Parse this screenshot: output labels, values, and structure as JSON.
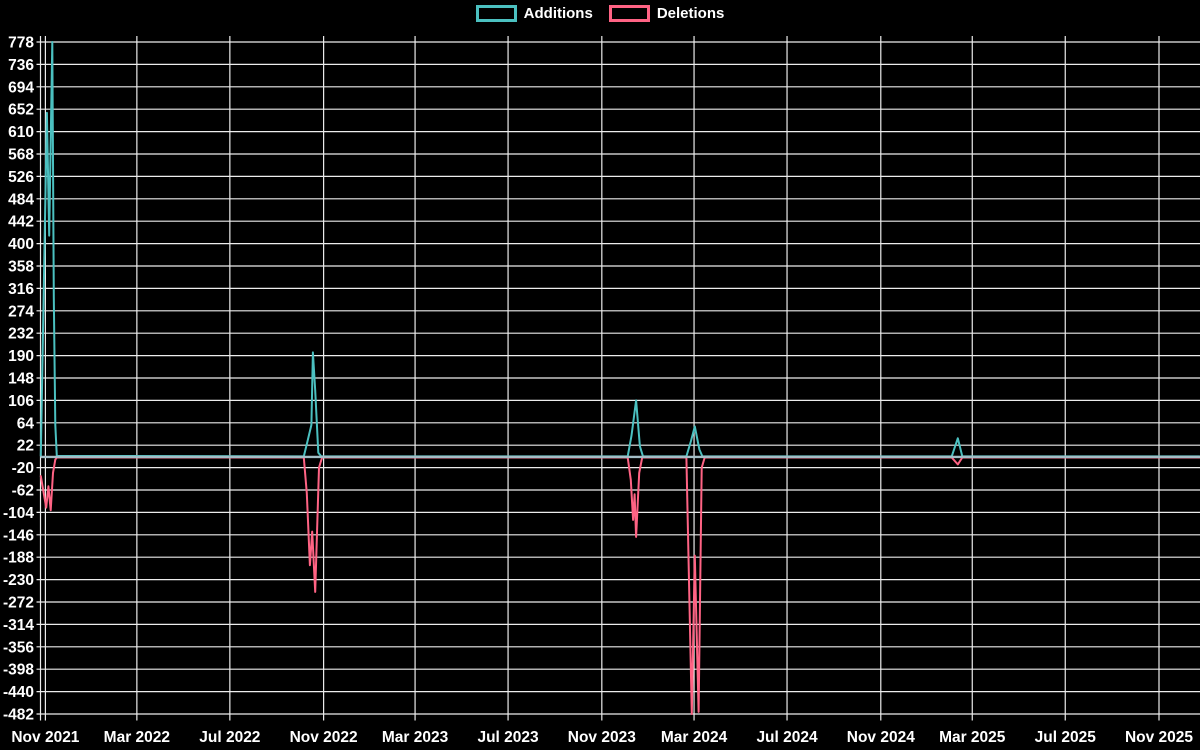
{
  "legend": {
    "items": [
      {
        "label": "Additions",
        "color": "#4bc0c0"
      },
      {
        "label": "Deletions",
        "color": "#ff6384"
      }
    ]
  },
  "chart_data": {
    "type": "line",
    "title": "",
    "background_color": "#000000",
    "grid": true,
    "grid_color": "#ececec",
    "text_color": "#ffffff",
    "legend_position": "top",
    "zero_baseline_color": "#a3bec6",
    "x_axis": {
      "start_date": "2021-11-01",
      "tick_interval_months": 4,
      "ticks": [
        "Nov 2021",
        "Mar 2022",
        "Jul 2022",
        "Nov 2022",
        "Mar 2023",
        "Jul 2023",
        "Nov 2023",
        "Mar 2024",
        "Jul 2024",
        "Nov 2024",
        "Mar 2025",
        "Jul 2025",
        "Nov 2025"
      ]
    },
    "y_axis": {
      "min": -482,
      "max": 778,
      "step": 42,
      "ticks": [
        778,
        736,
        694,
        652,
        610,
        568,
        526,
        484,
        442,
        400,
        358,
        316,
        274,
        232,
        190,
        148,
        106,
        64,
        22,
        -20,
        -62,
        -104,
        -146,
        -188,
        -230,
        -272,
        -314,
        -356,
        -398,
        -440,
        -482
      ]
    },
    "series": [
      {
        "name": "Additions",
        "color": "#4bc0c0",
        "points": [
          [
            "2021-10-26",
            2
          ],
          [
            "2021-11-03",
            645
          ],
          [
            "2021-11-06",
            415
          ],
          [
            "2021-11-10",
            778
          ],
          [
            "2021-11-12",
            300
          ],
          [
            "2021-11-14",
            60
          ],
          [
            "2021-11-16",
            2
          ],
          [
            "2022-10-06",
            1
          ],
          [
            "2022-10-11",
            30
          ],
          [
            "2022-10-16",
            60
          ],
          [
            "2022-10-18",
            196
          ],
          [
            "2022-10-21",
            125
          ],
          [
            "2022-10-25",
            8
          ],
          [
            "2022-10-29",
            1
          ],
          [
            "2023-12-05",
            1
          ],
          [
            "2023-12-10",
            40
          ],
          [
            "2023-12-16",
            106
          ],
          [
            "2023-12-21",
            20
          ],
          [
            "2023-12-25",
            1
          ],
          [
            "2024-02-20",
            1
          ],
          [
            "2024-02-26",
            30
          ],
          [
            "2024-03-02",
            57
          ],
          [
            "2024-03-08",
            14
          ],
          [
            "2024-03-12",
            1
          ],
          [
            "2025-02-02",
            1
          ],
          [
            "2025-02-10",
            35
          ],
          [
            "2025-02-16",
            1
          ],
          [
            "2025-12-24",
            1
          ]
        ]
      },
      {
        "name": "Deletions",
        "color": "#ff6384",
        "points": [
          [
            "2021-10-26",
            -36
          ],
          [
            "2021-11-02",
            -95
          ],
          [
            "2021-11-05",
            -55
          ],
          [
            "2021-11-08",
            -100
          ],
          [
            "2021-11-11",
            -30
          ],
          [
            "2021-11-14",
            -5
          ],
          [
            "2021-11-16",
            -1
          ],
          [
            "2022-10-06",
            -1
          ],
          [
            "2022-10-10",
            -68
          ],
          [
            "2022-10-14",
            -203
          ],
          [
            "2022-10-17",
            -140
          ],
          [
            "2022-10-21",
            -253
          ],
          [
            "2022-10-26",
            -20
          ],
          [
            "2022-10-30",
            -1
          ],
          [
            "2023-12-05",
            -1
          ],
          [
            "2023-12-09",
            -43
          ],
          [
            "2023-12-12",
            -118
          ],
          [
            "2023-12-14",
            -70
          ],
          [
            "2023-12-16",
            -150
          ],
          [
            "2023-12-20",
            -30
          ],
          [
            "2023-12-24",
            -1
          ],
          [
            "2024-02-20",
            -1
          ],
          [
            "2024-02-27",
            -482
          ],
          [
            "2024-03-02",
            -185
          ],
          [
            "2024-03-07",
            -478
          ],
          [
            "2024-03-11",
            -20
          ],
          [
            "2024-03-15",
            -1
          ],
          [
            "2025-02-02",
            -1
          ],
          [
            "2025-02-10",
            -14
          ],
          [
            "2025-02-16",
            -1
          ],
          [
            "2025-12-24",
            -1
          ]
        ]
      }
    ]
  }
}
